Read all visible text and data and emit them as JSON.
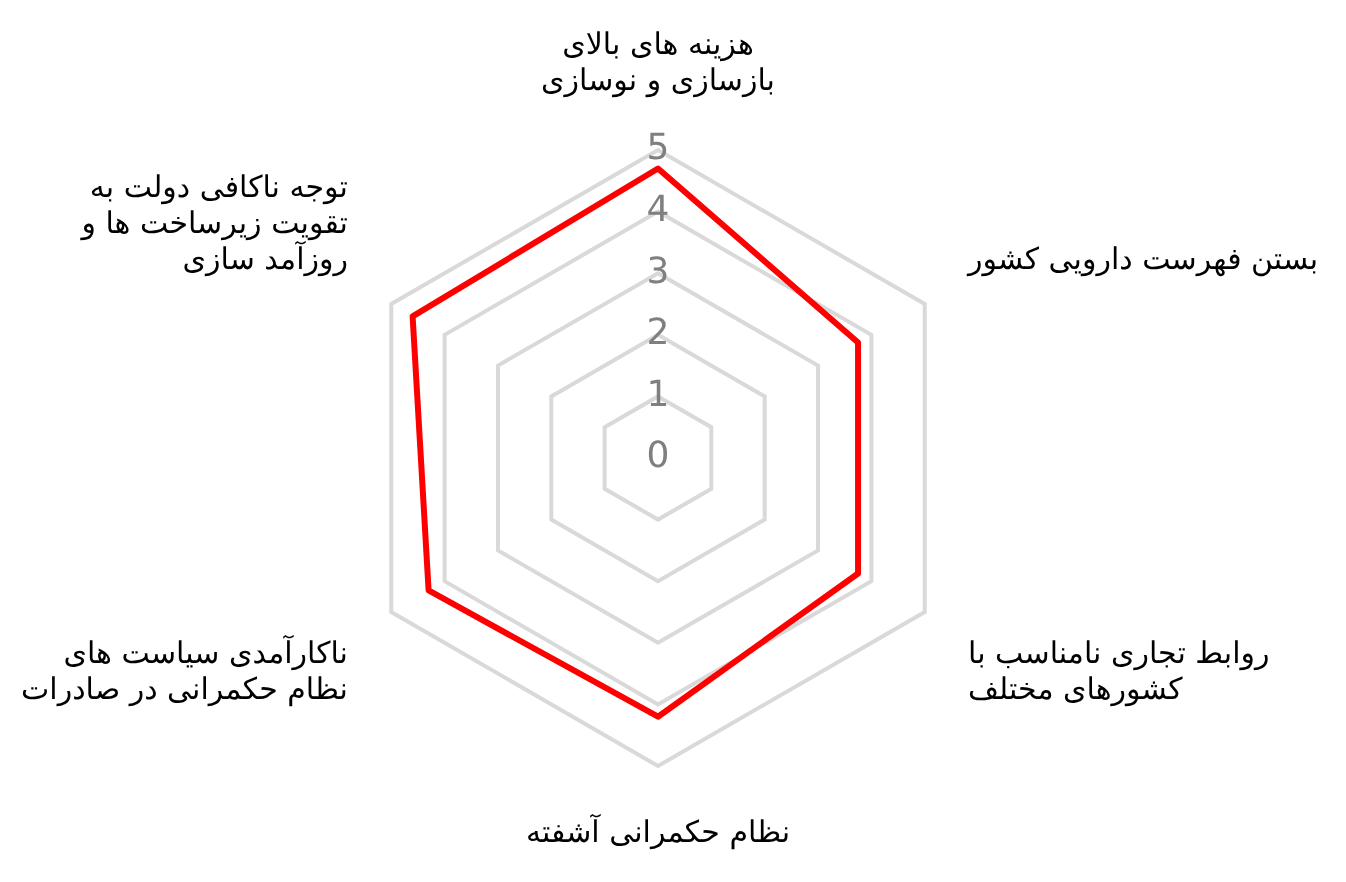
{
  "chart_data": {
    "type": "radar",
    "categories": [
      "هزینه های بالای بازسازی و نوسازی",
      "بستن فهرست دارویی کشور",
      "روابط تجاری نامناسب با کشورهای مختلف",
      "نظام حکمرانی آشفته",
      "ناکارآمدی سیاست های نظام حکمرانی در صادرات",
      "توجه ناکافی دولت به تقویت زیرساخت ها و روزآمد سازی"
    ],
    "series": [
      {
        "color": "#ff0000",
        "values": [
          4.7,
          3.75,
          3.75,
          4.2,
          4.3,
          4.6
        ]
      }
    ],
    "ylim": [
      0,
      5
    ],
    "yticks": [
      0,
      1,
      2,
      3,
      4,
      5
    ],
    "grid": true,
    "legend": false,
    "marker": "none"
  }
}
